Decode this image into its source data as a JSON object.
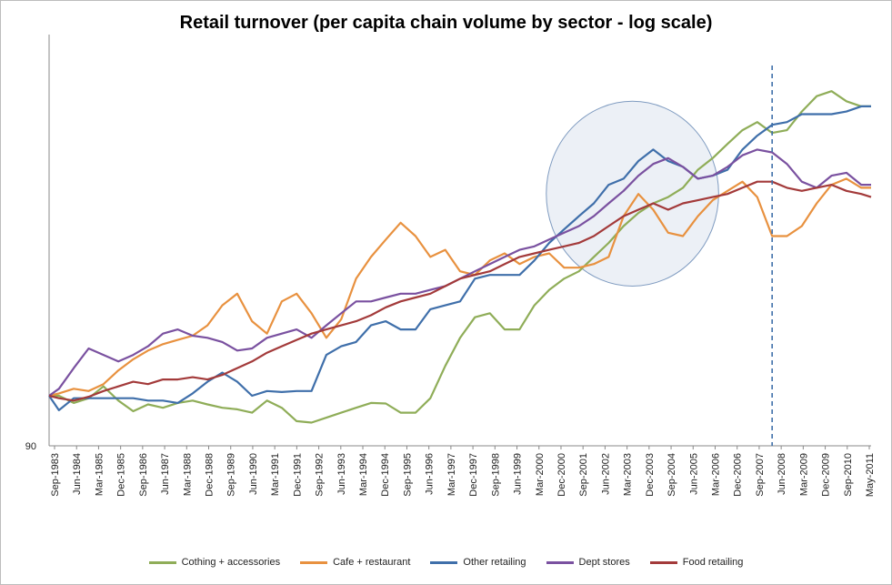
{
  "chart_data": {
    "type": "line",
    "title": "Retail turnover (per capita chain volume by sector - log scale)",
    "xlabel": "",
    "ylabel": "",
    "y_tick_labels": [
      "90"
    ],
    "ylim": [
      90,
      210
    ],
    "y_scale": "log",
    "x_range": [
      1983.67,
      2011.33
    ],
    "x_tick_labels": [
      "Sep-1983",
      "Jun-1984",
      "Mar-1985",
      "Dec-1985",
      "Sep-1986",
      "Jun-1987",
      "Mar-1988",
      "Dec-1988",
      "Sep-1989",
      "Jun-1990",
      "Mar-1991",
      "Dec-1991",
      "Sep-1992",
      "Jun-1993",
      "Mar-1994",
      "Dec-1994",
      "Sep-1995",
      "Jun-1996",
      "Mar-1997",
      "Dec-1997",
      "Sep-1998",
      "Jun-1999",
      "Mar-2000",
      "Dec-2000",
      "Sep-2001",
      "Jun-2002",
      "Mar-2003",
      "Dec-2003",
      "Sep-2004",
      "Jun-2005",
      "Mar-2006",
      "Dec-2006",
      "Sep-2007",
      "Jun-2008",
      "Mar-2009",
      "Dec-2009",
      "Sep-2010",
      "May-2011"
    ],
    "annotations": [
      {
        "kind": "vertical-dashed-line",
        "x": 2008.0
      },
      {
        "kind": "ellipse-highlight",
        "x_range": [
          2000.4,
          2006.2
        ],
        "y_range": [
          126,
          186
        ]
      }
    ],
    "series": [
      {
        "name": "Cothing + accessories",
        "color": "#8fad58",
        "x": [
          1983.67,
          1984.0,
          1984.5,
          1985.0,
          1985.5,
          1986.0,
          1986.5,
          1987.0,
          1987.5,
          1988.0,
          1988.5,
          1989.0,
          1989.5,
          1990.0,
          1990.5,
          1991.0,
          1991.5,
          1992.0,
          1992.5,
          1993.0,
          1993.5,
          1994.0,
          1994.5,
          1995.0,
          1995.5,
          1996.0,
          1996.5,
          1997.0,
          1997.5,
          1998.0,
          1998.5,
          1999.0,
          1999.5,
          2000.0,
          2000.5,
          2001.0,
          2001.5,
          2002.0,
          2002.5,
          2003.0,
          2003.5,
          2004.0,
          2004.5,
          2005.0,
          2005.5,
          2006.0,
          2006.5,
          2007.0,
          2007.5,
          2008.0,
          2008.5,
          2009.0,
          2009.5,
          2010.0,
          2010.5,
          2011.0,
          2011.33
        ],
        "values": [
          100,
          100,
          98.5,
          99.5,
          102,
          99,
          96.8,
          98.2,
          97.5,
          98.5,
          99,
          98.2,
          97.5,
          97.2,
          96.5,
          99,
          97.5,
          94.8,
          94.5,
          95.5,
          96.5,
          97.5,
          98.5,
          98.4,
          96.5,
          96.5,
          99.5,
          106.5,
          113,
          118,
          119,
          115,
          115,
          121,
          125,
          128,
          130,
          134,
          138,
          143,
          147,
          150,
          152,
          155,
          161,
          165,
          170,
          175,
          178,
          174,
          175,
          182,
          188,
          190,
          186,
          184,
          184
        ]
      },
      {
        "name": "Cafe + restaurant",
        "color": "#e8913f",
        "x": [
          1983.67,
          1984.0,
          1984.5,
          1985.0,
          1985.5,
          1986.0,
          1986.5,
          1987.0,
          1987.5,
          1988.0,
          1988.5,
          1989.0,
          1989.5,
          1990.0,
          1990.5,
          1991.0,
          1991.5,
          1992.0,
          1992.5,
          1993.0,
          1993.5,
          1994.0,
          1994.5,
          1995.0,
          1995.5,
          1996.0,
          1996.5,
          1997.0,
          1997.5,
          1998.0,
          1998.5,
          1999.0,
          1999.5,
          2000.0,
          2000.5,
          2001.0,
          2001.5,
          2002.0,
          2002.5,
          2003.0,
          2003.5,
          2004.0,
          2004.5,
          2005.0,
          2005.5,
          2006.0,
          2006.5,
          2007.0,
          2007.5,
          2008.0,
          2008.5,
          2009.0,
          2009.5,
          2010.0,
          2010.5,
          2011.0,
          2011.33
        ],
        "values": [
          100,
          100.5,
          101.5,
          101,
          102.5,
          105.5,
          108,
          110,
          111.5,
          112.5,
          113.5,
          116,
          121,
          124,
          117,
          114,
          122,
          124,
          119,
          113,
          117.5,
          128,
          134,
          139,
          144,
          140,
          134,
          136,
          130,
          129,
          133,
          135,
          132,
          134,
          135,
          131,
          131,
          132,
          134,
          146,
          153,
          148,
          141,
          140,
          146,
          151,
          154,
          157,
          152,
          140,
          140,
          143,
          150,
          156,
          158,
          155,
          155
        ]
      },
      {
        "name": "Other retailing",
        "color": "#3f6faa",
        "x": [
          1983.67,
          1984.0,
          1984.5,
          1985.0,
          1985.5,
          1986.0,
          1986.5,
          1987.0,
          1987.5,
          1988.0,
          1988.5,
          1989.0,
          1989.5,
          1990.0,
          1990.5,
          1991.0,
          1991.5,
          1992.0,
          1992.5,
          1993.0,
          1993.5,
          1994.0,
          1994.5,
          1995.0,
          1995.5,
          1996.0,
          1996.5,
          1997.0,
          1997.5,
          1998.0,
          1998.5,
          1999.0,
          1999.5,
          2000.0,
          2000.5,
          2001.0,
          2001.5,
          2002.0,
          2002.5,
          2003.0,
          2003.5,
          2004.0,
          2004.5,
          2005.0,
          2005.5,
          2006.0,
          2006.5,
          2007.0,
          2007.5,
          2008.0,
          2008.5,
          2009.0,
          2009.5,
          2010.0,
          2010.5,
          2011.0,
          2011.33
        ],
        "values": [
          100,
          97,
          99.5,
          99.5,
          99.5,
          99.5,
          99.5,
          99,
          99,
          98.5,
          100.5,
          103,
          105,
          103,
          100,
          101,
          100.8,
          101,
          101,
          109,
          111,
          112,
          116,
          117,
          115,
          115,
          120,
          121,
          122,
          128,
          129,
          129,
          129,
          133,
          138,
          142,
          146,
          150,
          156,
          158,
          164,
          168,
          164,
          162,
          158,
          159,
          161,
          168,
          173,
          177,
          178,
          181,
          181,
          181,
          182,
          184,
          184
        ]
      },
      {
        "name": "Dept stores",
        "color": "#7a51a0",
        "x": [
          1983.67,
          1984.0,
          1984.5,
          1985.0,
          1985.5,
          1986.0,
          1986.5,
          1987.0,
          1987.5,
          1988.0,
          1988.5,
          1989.0,
          1989.5,
          1990.0,
          1990.5,
          1991.0,
          1991.5,
          1992.0,
          1992.5,
          1993.0,
          1993.5,
          1994.0,
          1994.5,
          1995.0,
          1995.5,
          1996.0,
          1996.5,
          1997.0,
          1997.5,
          1998.0,
          1998.5,
          1999.0,
          1999.5,
          2000.0,
          2000.5,
          2001.0,
          2001.5,
          2002.0,
          2002.5,
          2003.0,
          2003.5,
          2004.0,
          2004.5,
          2005.0,
          2005.5,
          2006.0,
          2006.5,
          2007.0,
          2007.5,
          2008.0,
          2008.5,
          2009.0,
          2009.5,
          2010.0,
          2010.5,
          2011.0,
          2011.33
        ],
        "values": [
          100,
          101.5,
          106,
          110.5,
          109,
          107.5,
          109,
          111,
          114,
          115,
          113.5,
          113,
          112,
          110,
          110.5,
          113,
          114,
          115,
          113,
          116,
          119,
          122,
          122,
          123,
          124,
          124,
          125,
          126,
          128,
          130,
          132,
          134,
          136,
          137,
          139,
          141,
          143,
          146,
          150,
          154,
          159,
          163,
          165,
          162,
          158,
          159,
          162,
          166,
          168,
          167,
          163,
          157,
          155,
          159,
          160,
          156,
          156
        ]
      },
      {
        "name": "Food retailing",
        "color": "#a33a3a",
        "x": [
          1983.67,
          1984.0,
          1984.5,
          1985.0,
          1985.5,
          1986.0,
          1986.5,
          1987.0,
          1987.5,
          1988.0,
          1988.5,
          1989.0,
          1989.5,
          1990.0,
          1990.5,
          1991.0,
          1991.5,
          1992.0,
          1992.5,
          1993.0,
          1993.5,
          1994.0,
          1994.5,
          1995.0,
          1995.5,
          1996.0,
          1996.5,
          1997.0,
          1997.5,
          1998.0,
          1998.5,
          1999.0,
          1999.5,
          2000.0,
          2000.5,
          2001.0,
          2001.5,
          2002.0,
          2002.5,
          2003.0,
          2003.5,
          2004.0,
          2004.5,
          2005.0,
          2005.5,
          2006.0,
          2006.5,
          2007.0,
          2007.5,
          2008.0,
          2008.5,
          2009.0,
          2009.5,
          2010.0,
          2010.5,
          2011.0,
          2011.33
        ],
        "values": [
          100,
          99.5,
          99,
          99.8,
          101,
          102,
          103,
          102.5,
          103.5,
          103.5,
          104,
          103.5,
          104.5,
          106,
          107.5,
          109.5,
          111,
          112.5,
          114,
          115,
          116,
          117,
          118.5,
          120.5,
          122,
          123,
          124,
          126,
          128,
          129,
          130,
          132,
          134,
          135,
          136,
          137,
          138,
          140,
          143,
          146,
          148,
          150,
          148,
          150,
          151,
          152,
          153,
          155,
          157,
          157,
          155,
          154,
          155,
          156,
          154,
          153,
          152
        ]
      }
    ]
  }
}
